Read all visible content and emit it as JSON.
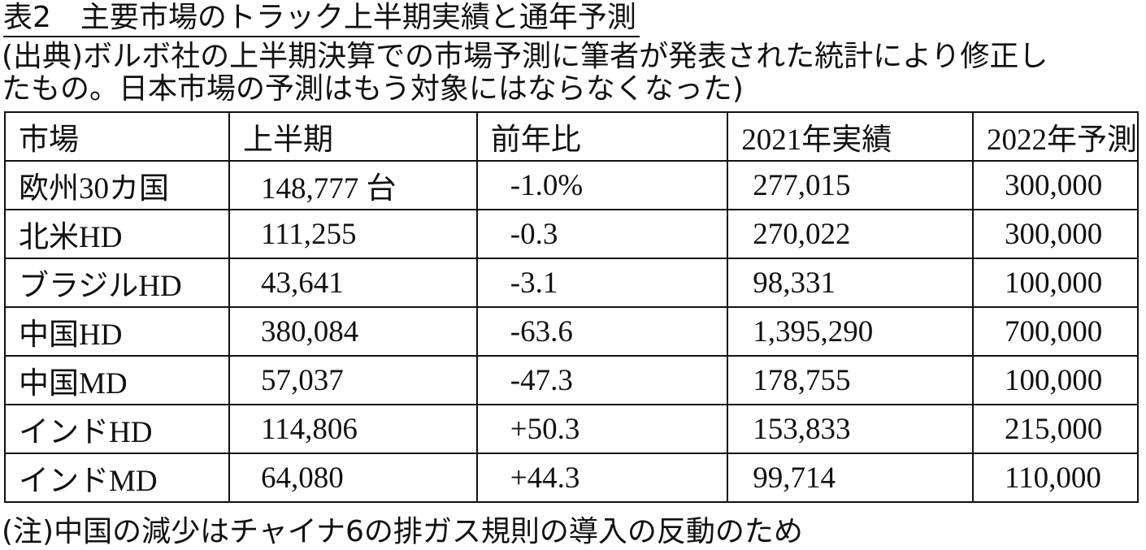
{
  "header": {
    "title": "表2　主要市場のトラック上半期実績と通年予測"
  },
  "source": {
    "lines": [
      "(出典)ボルボ社の上半期決算での市場予測に筆者が発表された統計により修正し",
      "たもの。日本市場の予測はもう対象にはならなくなった)"
    ]
  },
  "table": {
    "header": [
      "市場",
      "上半期",
      "前年比",
      "2021年実績",
      "2022年予測"
    ],
    "rows": [
      [
        "欧州30カ国",
        "148,777 台",
        "-1.0%",
        "277,015",
        "300,000"
      ],
      [
        "北米HD",
        "111,255",
        "-0.3",
        "270,022",
        "300,000"
      ],
      [
        "ブラジルHD",
        "43,641",
        "-3.1",
        "98,331",
        "100,000"
      ],
      [
        "中国HD",
        "380,084",
        "-63.6",
        "1,395,290",
        "700,000"
      ],
      [
        "中国MD",
        "57,037",
        "-47.3",
        "178,755",
        "100,000"
      ],
      [
        "インドHD",
        "114,806",
        "+50.3",
        "153,833",
        "215,000"
      ],
      [
        "インドMD",
        "64,080",
        "+44.3",
        "99,714",
        "110,000"
      ]
    ]
  },
  "note": "(注)中国の減少はチャイナ6の排ガス規則の導入の反動のため"
}
